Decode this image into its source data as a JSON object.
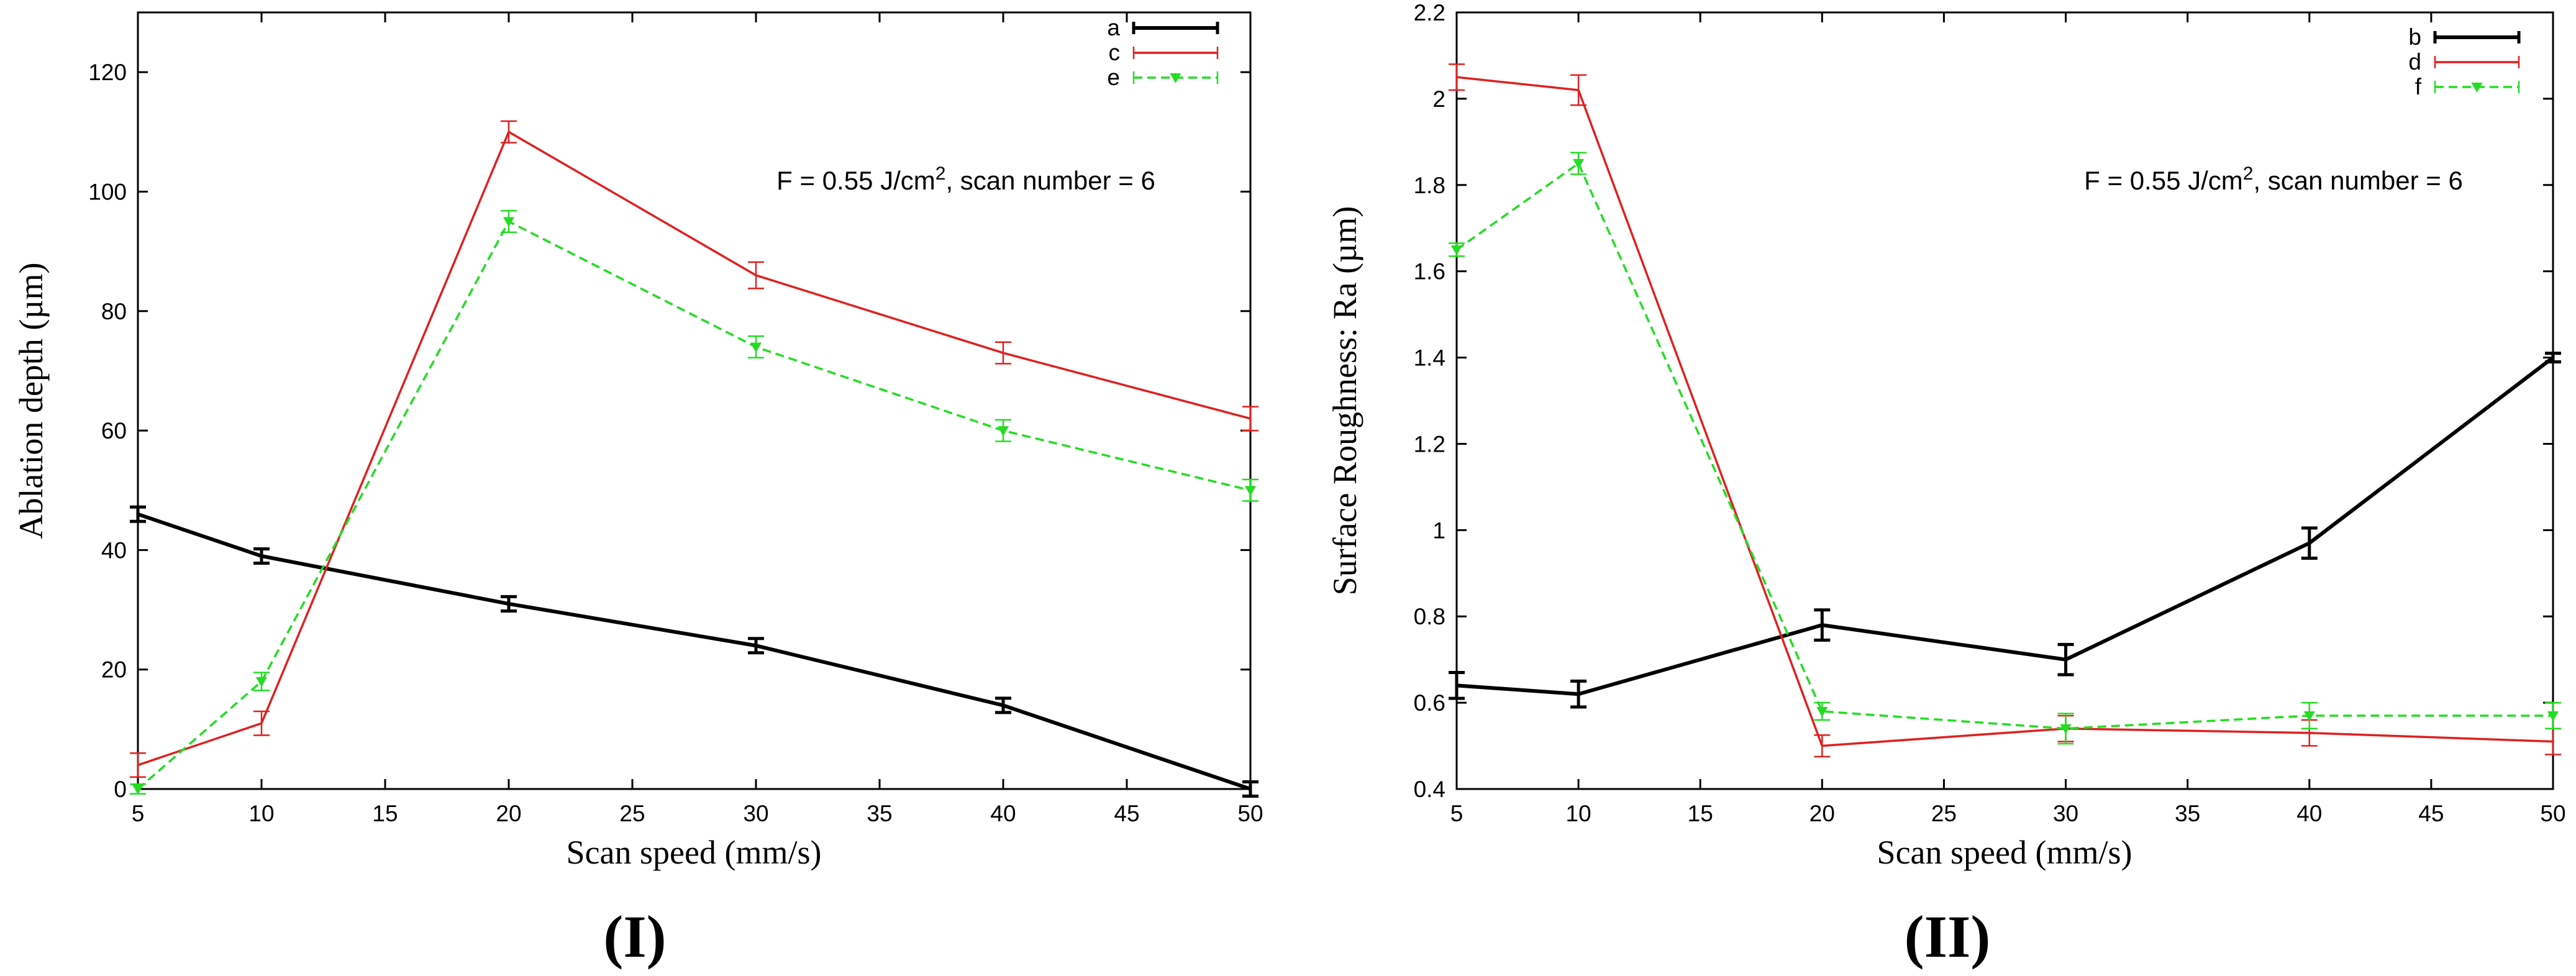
{
  "chart_data": [
    {
      "type": "line",
      "panel_label": "(I)",
      "xlabel": "Scan speed (mm/s)",
      "ylabel": "Ablation depth (µm)",
      "xlim": [
        5,
        50
      ],
      "ylim": [
        0,
        130
      ],
      "xticks": [
        5,
        10,
        15,
        20,
        25,
        30,
        35,
        40,
        45,
        50
      ],
      "yticks": [
        0,
        20,
        40,
        60,
        80,
        100,
        120
      ],
      "annotation": {
        "prefix": "F = 0.55 J/cm",
        "sup": "2",
        "suffix": ", scan number = 6"
      },
      "legend_position": "top-right",
      "x": [
        5,
        10,
        20,
        30,
        40,
        50
      ],
      "series": [
        {
          "name": "a",
          "color": "#000000",
          "style": "solid",
          "marker": "none",
          "bold": true,
          "values": [
            46,
            39,
            31,
            24,
            14,
            0
          ],
          "errors": [
            1.2,
            1.2,
            1.2,
            1.2,
            1.2,
            1.2
          ]
        },
        {
          "name": "c",
          "color": "#e02020",
          "style": "solid",
          "marker": "none",
          "bold": false,
          "values": [
            4,
            11,
            110,
            86,
            73,
            62
          ],
          "errors": [
            2,
            2,
            1.8,
            2.2,
            1.8,
            2
          ]
        },
        {
          "name": "e",
          "color": "#22dd22",
          "style": "dashed",
          "marker": "triangle",
          "bold": false,
          "values": [
            0,
            18,
            95,
            74,
            60,
            50
          ],
          "errors": [
            0.8,
            1.5,
            1.8,
            1.8,
            1.8,
            1.8
          ]
        }
      ]
    },
    {
      "type": "line",
      "panel_label": "(II)",
      "xlabel": "Scan speed (mm/s)",
      "ylabel": "Surface Roughness: Ra (µm)",
      "xlim": [
        5,
        50
      ],
      "ylim": [
        0.4,
        2.2
      ],
      "xticks": [
        5,
        10,
        15,
        20,
        25,
        30,
        35,
        40,
        45,
        50
      ],
      "yticks": [
        0.4,
        0.6,
        0.8,
        1,
        1.2,
        1.4,
        1.6,
        1.8,
        2,
        2.2
      ],
      "annotation": {
        "prefix": "F = 0.55 J/cm",
        "sup": "2",
        "suffix": ", scan number = 6"
      },
      "legend_position": "top-right",
      "x": [
        5,
        10,
        20,
        30,
        40,
        50
      ],
      "series": [
        {
          "name": "b",
          "color": "#000000",
          "style": "solid",
          "marker": "none",
          "bold": true,
          "values": [
            0.64,
            0.62,
            0.78,
            0.7,
            0.97,
            1.4
          ],
          "errors": [
            0.03,
            0.03,
            0.035,
            0.035,
            0.035,
            0.01
          ]
        },
        {
          "name": "d",
          "color": "#e02020",
          "style": "solid",
          "marker": "none",
          "bold": false,
          "values": [
            2.05,
            2.02,
            0.5,
            0.54,
            0.53,
            0.51
          ],
          "errors": [
            0.03,
            0.035,
            0.025,
            0.03,
            0.03,
            0.03
          ]
        },
        {
          "name": "f",
          "color": "#22dd22",
          "style": "dashed",
          "marker": "triangle",
          "bold": false,
          "values": [
            1.65,
            1.85,
            0.58,
            0.54,
            0.57,
            0.57
          ],
          "errors": [
            0.015,
            0.025,
            0.02,
            0.035,
            0.03,
            0.03
          ]
        }
      ]
    }
  ]
}
